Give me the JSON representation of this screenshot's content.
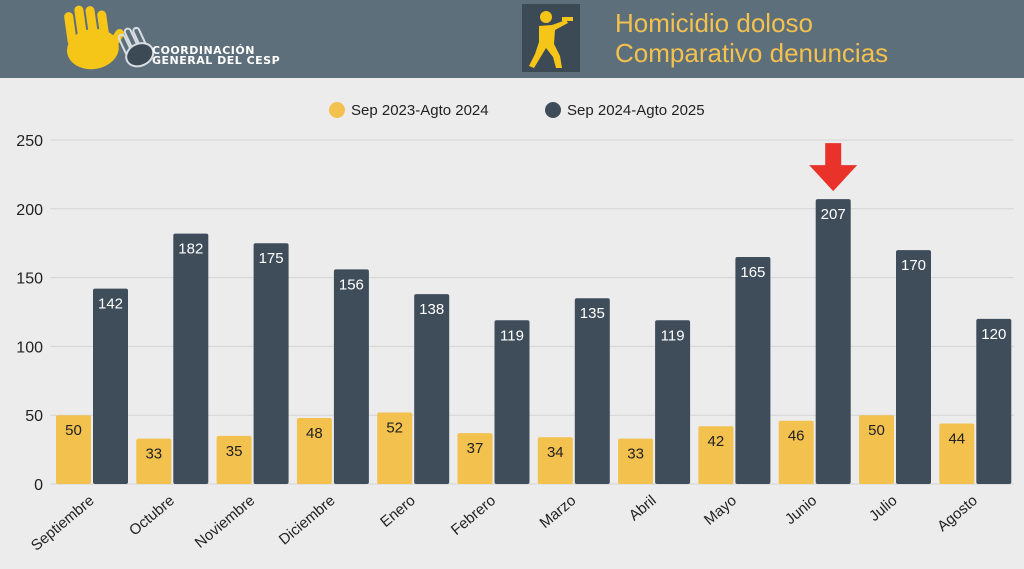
{
  "header": {
    "org_line1": "COORDINACIÓN",
    "org_line2": "GENERAL DEL CESP",
    "title_line1": "Homicidio doloso",
    "title_line2": "Comparativo denuncias",
    "icon": "gunman-icon"
  },
  "colors": {
    "header_bg": "#5e6f7c",
    "title": "#f2c14e",
    "series1": "#f2c14e",
    "series2": "#3f4d5b",
    "arrow": "#e8322a"
  },
  "chart_data": {
    "type": "bar",
    "categories": [
      "Septiembre",
      "Octubre",
      "Noviembre",
      "Diciembre",
      "Enero",
      "Febrero",
      "Marzo",
      "Abril",
      "Mayo",
      "Junio",
      "Julio",
      "Agosto"
    ],
    "series": [
      {
        "name": "Sep 2023-Agto 2024",
        "values": [
          50,
          33,
          35,
          48,
          52,
          37,
          34,
          33,
          42,
          46,
          50,
          44
        ]
      },
      {
        "name": "Sep 2024-Agto 2025",
        "values": [
          142,
          182,
          175,
          156,
          138,
          119,
          135,
          119,
          165,
          207,
          170,
          120
        ]
      }
    ],
    "ylim": [
      0,
      250
    ],
    "yticks": [
      0,
      50,
      100,
      150,
      200,
      250
    ],
    "grid": true,
    "legend": "top-center",
    "highlight_category": "Junio",
    "xlabel": "",
    "ylabel": ""
  }
}
